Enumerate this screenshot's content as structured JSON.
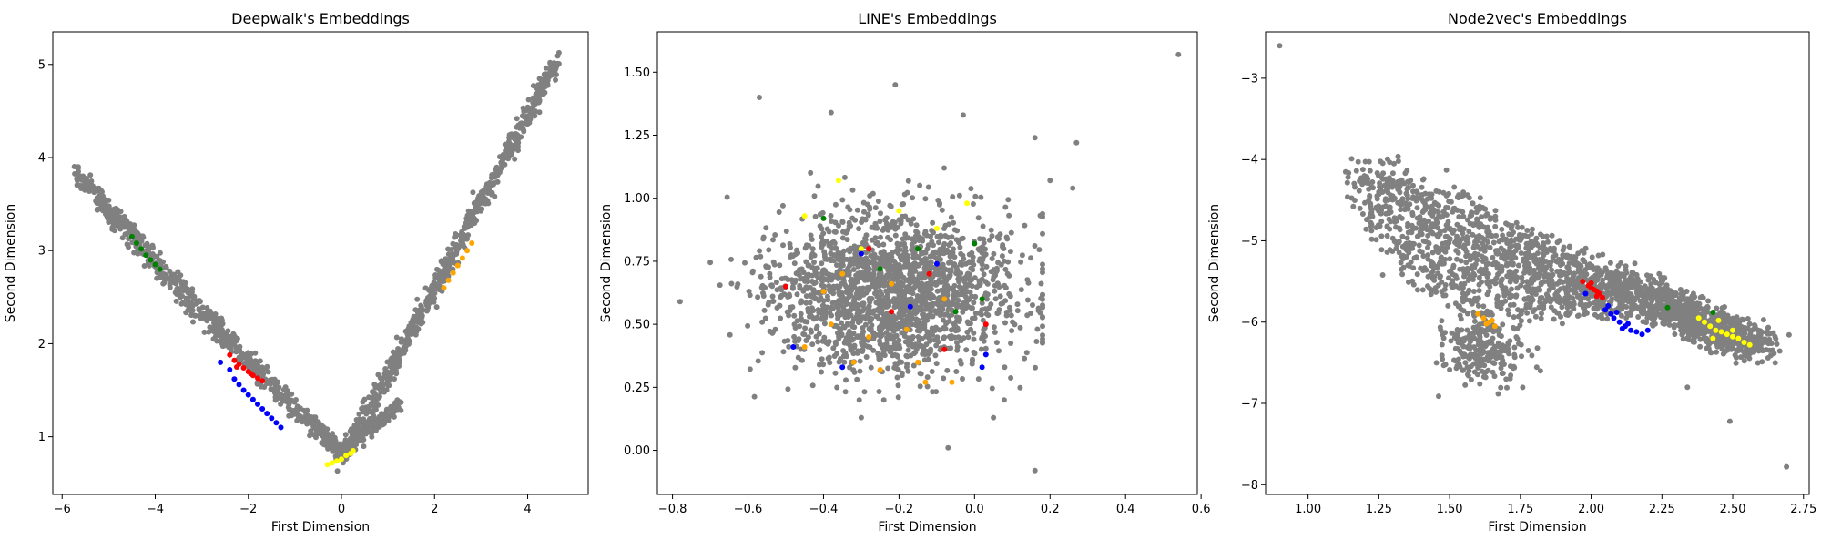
{
  "chart_data": [
    {
      "type": "scatter",
      "title": "Deepwalk's Embeddings",
      "xlabel": "First Dimension",
      "ylabel": "Second Dimension",
      "xlim": [
        -6.2,
        5.3
      ],
      "ylim": [
        0.38,
        5.35
      ],
      "xticks": [
        -6,
        -4,
        -2,
        0,
        2,
        4
      ],
      "yticks": [
        1,
        2,
        3,
        4,
        5
      ],
      "grid": false,
      "background": {
        "color": "#808080",
        "count": 1600
      },
      "highlight_series": [
        {
          "color": "#008000",
          "x": [
            -4.5,
            -4.4,
            -4.3,
            -4.2,
            -4.1,
            -4.0,
            -3.9
          ],
          "y": [
            3.15,
            3.08,
            3.02,
            2.95,
            2.9,
            2.85,
            2.8
          ]
        },
        {
          "color": "#ff0000",
          "x": [
            -2.4,
            -2.3,
            -2.2,
            -2.1,
            -2.0,
            -1.9,
            -1.8,
            -1.7,
            -2.25,
            -1.95
          ],
          "y": [
            1.88,
            1.82,
            1.78,
            1.74,
            1.7,
            1.66,
            1.63,
            1.6,
            1.75,
            1.68
          ]
        },
        {
          "color": "#0000ff",
          "x": [
            -2.6,
            -2.4,
            -2.3,
            -2.2,
            -2.1,
            -2.0,
            -1.9,
            -1.8,
            -1.7,
            -1.6,
            -1.5,
            -1.4,
            -1.3
          ],
          "y": [
            1.8,
            1.72,
            1.62,
            1.56,
            1.5,
            1.45,
            1.4,
            1.35,
            1.3,
            1.25,
            1.2,
            1.15,
            1.1
          ]
        },
        {
          "color": "#ffff00",
          "x": [
            -0.3,
            -0.2,
            -0.1,
            0.0,
            0.1,
            0.2,
            0.25
          ],
          "y": [
            0.7,
            0.72,
            0.74,
            0.76,
            0.8,
            0.82,
            0.85
          ]
        },
        {
          "color": "#ffa500",
          "x": [
            2.2,
            2.3,
            2.4,
            2.5,
            2.6,
            2.7,
            2.8
          ],
          "y": [
            2.6,
            2.68,
            2.76,
            2.84,
            2.92,
            3.0,
            3.08
          ]
        }
      ]
    },
    {
      "type": "scatter",
      "title": "LINE's Embeddings",
      "xlabel": "First Dimension",
      "ylabel": "Second Dimension",
      "xlim": [
        -0.84,
        0.59
      ],
      "ylim": [
        -0.175,
        1.66
      ],
      "xticks": [
        -0.8,
        -0.6,
        -0.4,
        -0.2,
        0.0,
        0.2,
        0.4,
        0.6
      ],
      "yticks": [
        0.0,
        0.25,
        0.5,
        0.75,
        1.0,
        1.25,
        1.5
      ],
      "xtick_labels": [
        "−0.8",
        "−0.6",
        "−0.4",
        "−0.2",
        "0.0",
        "0.2",
        "0.4",
        "0.6"
      ],
      "ytick_labels": [
        "0.00",
        "0.25",
        "0.50",
        "0.75",
        "1.00",
        "1.25",
        "1.50"
      ],
      "grid": false,
      "background": {
        "color": "#808080",
        "count": 2000
      },
      "outliers": {
        "x": [
          0.54,
          -0.57,
          -0.21,
          -0.38,
          -0.03,
          0.16,
          0.27,
          -0.78,
          0.05,
          -0.07,
          0.16,
          0.26,
          0.2,
          -0.3
        ],
        "y": [
          1.57,
          1.4,
          1.45,
          1.34,
          1.33,
          1.24,
          1.22,
          0.59,
          0.13,
          0.01,
          -0.08,
          1.04,
          1.07,
          0.13
        ]
      },
      "highlight_series": [
        {
          "color": "#ffff00",
          "x": [
            -0.36,
            -0.45,
            -0.3,
            -0.02,
            -0.2,
            -0.1
          ],
          "y": [
            1.07,
            0.93,
            0.8,
            0.98,
            0.95,
            0.88
          ]
        },
        {
          "color": "#008000",
          "x": [
            -0.4,
            -0.15,
            0.0,
            -0.05,
            0.02,
            -0.25
          ],
          "y": [
            0.92,
            0.8,
            0.82,
            0.55,
            0.6,
            0.72
          ]
        },
        {
          "color": "#ff0000",
          "x": [
            -0.5,
            -0.28,
            -0.12,
            -0.08,
            -0.22,
            0.03
          ],
          "y": [
            0.65,
            0.8,
            0.7,
            0.4,
            0.55,
            0.5
          ]
        },
        {
          "color": "#0000ff",
          "x": [
            -0.48,
            -0.35,
            -0.17,
            0.03,
            0.02,
            -0.3,
            -0.1
          ],
          "y": [
            0.41,
            0.33,
            0.57,
            0.38,
            0.33,
            0.78,
            0.74
          ]
        },
        {
          "color": "#ffa500",
          "x": [
            -0.45,
            -0.38,
            -0.32,
            -0.25,
            -0.18,
            -0.13,
            -0.06,
            -0.4,
            -0.22,
            -0.28,
            -0.08,
            -0.15,
            -0.35
          ],
          "y": [
            0.41,
            0.5,
            0.35,
            0.32,
            0.48,
            0.27,
            0.27,
            0.63,
            0.66,
            0.45,
            0.6,
            0.35,
            0.7
          ]
        }
      ]
    },
    {
      "type": "scatter",
      "title": "Node2vec's Embeddings",
      "xlabel": "First Dimension",
      "ylabel": "Second Dimension",
      "xlim": [
        0.85,
        2.77
      ],
      "ylim": [
        -8.12,
        -2.43
      ],
      "xticks": [
        1.0,
        1.25,
        1.5,
        1.75,
        2.0,
        2.25,
        2.5,
        2.75
      ],
      "yticks": [
        -8,
        -7,
        -6,
        -5,
        -4,
        -3
      ],
      "xtick_labels": [
        "1.00",
        "1.25",
        "1.50",
        "1.75",
        "2.00",
        "2.25",
        "2.50",
        "2.75"
      ],
      "ytick_labels": [
        "−8",
        "−7",
        "−6",
        "−5",
        "−4",
        "−3"
      ],
      "grid": false,
      "background": {
        "color": "#808080",
        "count": 2200
      },
      "outliers": {
        "x": [
          0.9,
          2.34,
          2.49,
          2.69,
          2.65
        ],
        "y": [
          -2.6,
          -6.8,
          -7.22,
          -7.78,
          -6.5
        ]
      },
      "highlight_series": [
        {
          "color": "#ff0000",
          "x": [
            1.97,
            1.99,
            2.0,
            2.01,
            2.02,
            2.03,
            2.04,
            2.0,
            2.02
          ],
          "y": [
            -5.5,
            -5.55,
            -5.58,
            -5.6,
            -5.62,
            -5.65,
            -5.7,
            -5.52,
            -5.68
          ]
        },
        {
          "color": "#0000ff",
          "x": [
            1.98,
            2.05,
            2.07,
            2.08,
            2.1,
            2.12,
            2.14,
            2.16,
            2.18,
            2.2,
            2.09,
            2.13,
            2.06,
            2.11
          ],
          "y": [
            -5.65,
            -5.85,
            -5.9,
            -5.95,
            -6.0,
            -6.05,
            -6.1,
            -6.12,
            -6.15,
            -6.1,
            -5.88,
            -6.02,
            -5.8,
            -6.08
          ]
        },
        {
          "color": "#ffff00",
          "x": [
            2.38,
            2.4,
            2.42,
            2.44,
            2.46,
            2.48,
            2.5,
            2.52,
            2.54,
            2.56,
            2.45,
            2.5,
            2.43
          ],
          "y": [
            -5.95,
            -6.0,
            -6.05,
            -6.1,
            -6.12,
            -6.15,
            -6.18,
            -6.2,
            -6.25,
            -6.28,
            -5.98,
            -6.1,
            -6.2
          ]
        },
        {
          "color": "#ffa500",
          "x": [
            1.6,
            1.62,
            1.64,
            1.66,
            1.65,
            1.63
          ],
          "y": [
            -5.9,
            -5.95,
            -6.0,
            -6.05,
            -5.98,
            -6.02
          ]
        },
        {
          "color": "#008000",
          "x": [
            2.27,
            2.43
          ],
          "y": [
            -5.82,
            -5.88
          ]
        }
      ]
    }
  ]
}
